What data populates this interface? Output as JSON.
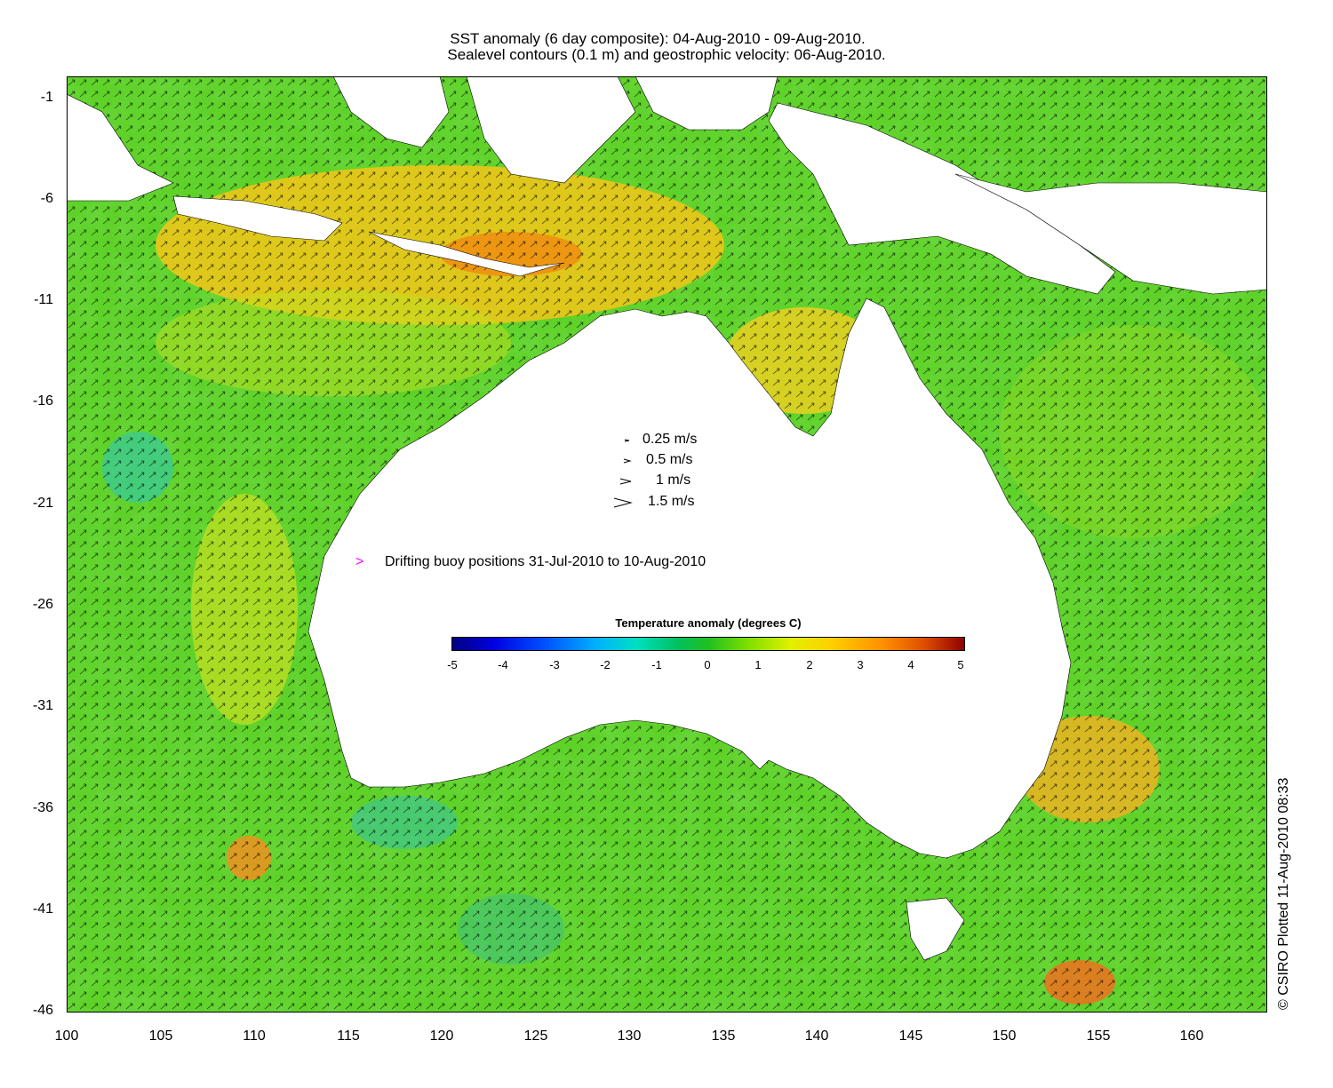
{
  "title": {
    "line1": "SST anomaly (6 day composite): 04-Aug-2010 - 09-Aug-2010.",
    "line2": "Sealevel contours (0.1 m) and geostrophic velocity: 06-Aug-2010."
  },
  "map": {
    "region": "Australia",
    "x_ticks": [
      "100",
      "105",
      "110",
      "115",
      "120",
      "125",
      "130",
      "135",
      "140",
      "145",
      "150",
      "155",
      "160"
    ],
    "y_ticks": [
      "-1",
      "-6",
      "-11",
      "-16",
      "-21",
      "-26",
      "-31",
      "-36",
      "-41",
      "-46"
    ],
    "lon_range": [
      100,
      164
    ],
    "lat_range": [
      -46,
      -0.2
    ]
  },
  "velocity_key": {
    "items": [
      {
        "label": "0.25 m/s"
      },
      {
        "label": "0.5 m/s"
      },
      {
        "label": "1 m/s"
      },
      {
        "label": "1.5 m/s"
      }
    ]
  },
  "buoy_legend": {
    "symbol": ">",
    "label": "Drifting buoy positions 31-Jul-2010 to 10-Aug-2010",
    "color": "#ff00ff"
  },
  "colorbar": {
    "title": "Temperature anomaly (degrees C)",
    "ticks": [
      "-5",
      "-4",
      "-3",
      "-2",
      "-1",
      "0",
      "1",
      "2",
      "3",
      "4",
      "5"
    ]
  },
  "credit": "© CSIRO Plotted 11-Aug-2010 08:33"
}
